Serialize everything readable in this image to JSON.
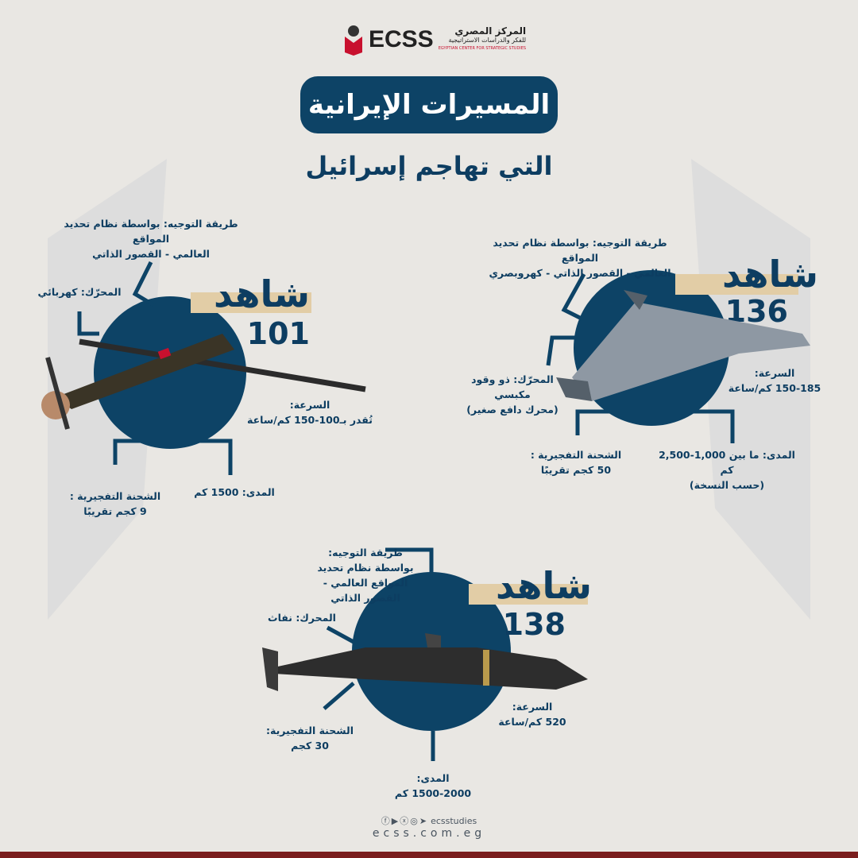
{
  "logo": {
    "abbr": "ECSS",
    "name_ar_1": "المركز المصري",
    "name_ar_2": "للفكر والدراسات الاستراتيجية",
    "name_en": "EGYPTIAN CENTER FOR STRATEGIC STUDIES"
  },
  "title": "المسيرات الإيرانية",
  "subtitle": "التي تهاجم إسرائيل",
  "drones": [
    {
      "name": "شاهد",
      "model": "101",
      "guidance_1": "طريقة التوجيه: بواسطة نظام تحديد المواقع",
      "guidance_2": "العالمي - القصور الذاتي",
      "engine": "المحرّك: كهربائي",
      "speed_label": "السرعة:",
      "speed_value": "تُقدر بـ100-150 كم/ساعة",
      "warhead_label": "الشحنة التفجيرية :",
      "warhead_value": "9 كجم تقريبًا",
      "range": "المدى: 1500 كم"
    },
    {
      "name": "شاهد",
      "model": "136",
      "guidance_1": "طريقة التوجيه: بواسطة نظام تحديد المواقع",
      "guidance_2": "العالمي - القصور الذاتي - كهروبصري",
      "engine_1": "المحرّك: ذو وقود مكبسي",
      "engine_2": "(محرك دافع صغير)",
      "speed_label": "السرعة:",
      "speed_value": "150-185 كم/ساعة",
      "warhead_label": "الشحنة التفجيرية :",
      "warhead_value": "50 كجم تقريبًا",
      "range_1": "المدى: ما بين 1,000-2,500 كم",
      "range_2": "(حسب النسخة)"
    },
    {
      "name": "شاهد",
      "model": "138",
      "guidance_1": "طريقة التوجيه:",
      "guidance_2": "بواسطة نظام تحديد المواقع العالمي -",
      "guidance_3": "القصور الذاتي",
      "engine": "المحرك: نفاث",
      "speed_label": "السرعة:",
      "speed_value": "520 كم/ساعة",
      "warhead_label": "الشحنة التفجيرية:",
      "warhead_value": "30 كجم",
      "range_label": "المدى:",
      "range_value": "1500-2000 كم"
    }
  ],
  "footer": {
    "social_handle": "ecsstudies",
    "website": "ecss.com.eg",
    "social_icons": [
      "facebook-icon",
      "youtube-icon",
      "x-icon",
      "instagram-icon",
      "telegram-icon"
    ]
  },
  "colors": {
    "navy": "#0d4366",
    "beige": "#e2cda6",
    "background": "#e9e7e3",
    "logo_red": "#c8102e"
  }
}
